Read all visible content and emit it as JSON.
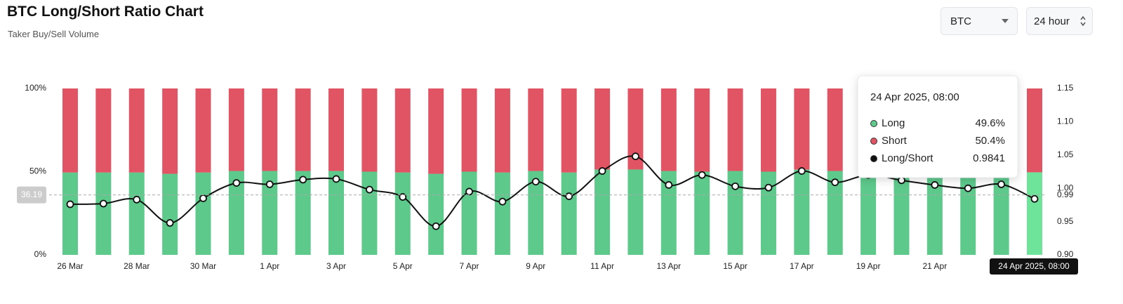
{
  "header": {
    "title": "BTC Long/Short Ratio Chart",
    "subtitle": "Taker Buy/Sell Volume",
    "coin_select": "BTC",
    "interval_select": "24 hour"
  },
  "chart_data": {
    "type": "stacked-bar-line",
    "categories": [
      "26 Mar",
      null,
      "28 Mar",
      null,
      "30 Mar",
      null,
      "1 Apr",
      null,
      "3 Apr",
      null,
      "5 Apr",
      null,
      "7 Apr",
      null,
      "9 Apr",
      null,
      "11 Apr",
      null,
      "13 Apr",
      null,
      "15 Apr",
      null,
      "17 Apr",
      null,
      "19 Apr",
      null,
      "21 Apr",
      null,
      null,
      "24 Apr 2025, 08:00"
    ],
    "series": [
      {
        "name": "Long",
        "color": "#5dc98b",
        "values": [
          49.5,
          49.5,
          49.5,
          48.7,
          49.5,
          50.4,
          50.4,
          50.4,
          50.4,
          50,
          49.5,
          48.7,
          50,
          49.5,
          50.4,
          49.5,
          51.3,
          51.3,
          50.4,
          50,
          50.4,
          50,
          51.2,
          50.4,
          50.5,
          50.3,
          50.2,
          50,
          50.1,
          49.6
        ]
      },
      {
        "name": "Short",
        "color": "#e05464",
        "values": [
          50.5,
          50.5,
          50.5,
          51.3,
          50.5,
          49.6,
          49.6,
          49.6,
          49.6,
          50,
          50.5,
          51.3,
          50,
          50.5,
          49.6,
          50.5,
          48.7,
          48.7,
          49.6,
          50,
          49.6,
          50,
          48.8,
          49.6,
          49.5,
          49.7,
          49.8,
          50,
          49.9,
          50.4
        ]
      },
      {
        "name": "Long/Short",
        "color": "#111111",
        "axis": "y2",
        "values": [
          0.976,
          0.977,
          0.983,
          0.948,
          0.985,
          1.008,
          1.006,
          1.013,
          1.014,
          0.998,
          0.987,
          0.943,
          0.995,
          0.98,
          1.01,
          0.988,
          1.026,
          1.048,
          1.005,
          1.02,
          1.003,
          1.001,
          1.026,
          1.009,
          1.02,
          1.012,
          1.005,
          1.0,
          1.006,
          0.9841
        ]
      }
    ],
    "ylim": [
      0,
      100
    ],
    "yticks": [
      {
        "value": 0,
        "label": "0%"
      },
      {
        "value": 50,
        "label": "50%"
      },
      {
        "value": 100,
        "label": "100%"
      }
    ],
    "y2lim": [
      0.9,
      1.15
    ],
    "y2ticks": [
      {
        "value": 0.9,
        "label": "0.90"
      },
      0.95,
      {
        "value": 1.0,
        "label": "1.00"
      },
      1.05,
      {
        "value": 1.1,
        "label": "1.10"
      },
      1.15
    ],
    "crosshair": {
      "y_label": 36.19,
      "y2_label": 0.99
    },
    "tooltip": {
      "value_labels": [
        "49.6%",
        "50.4%",
        "0.9841"
      ]
    }
  }
}
